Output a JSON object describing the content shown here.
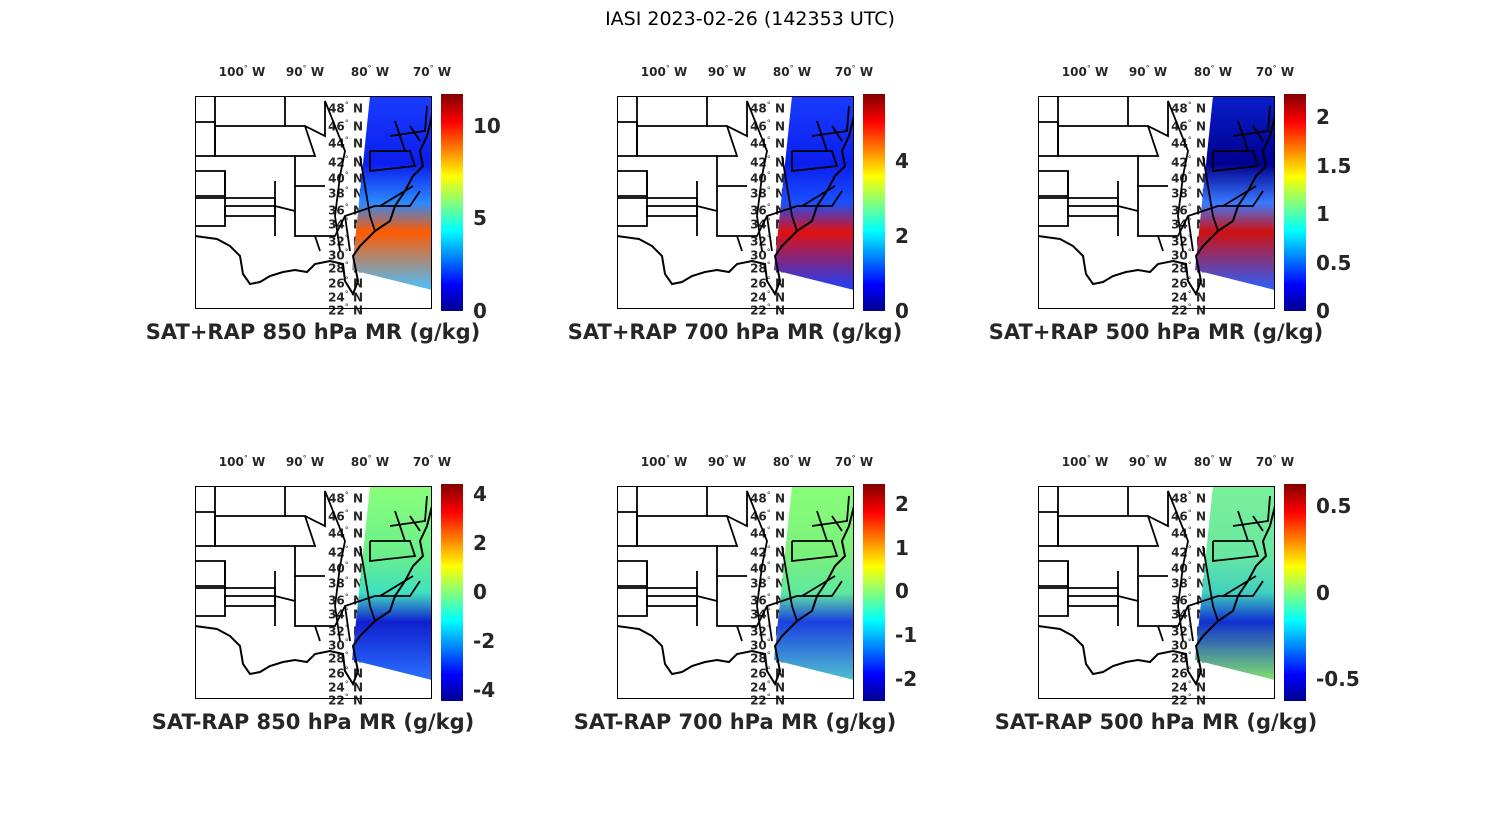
{
  "title": "IASI 2023-02-26 (142353 UTC)",
  "lon_labels": [
    "100",
    "90",
    "80",
    "70"
  ],
  "lon_suffix": "W",
  "lat_labels": [
    "48",
    "46",
    "44",
    "42",
    "40",
    "38",
    "36",
    "34",
    "32",
    "30",
    "28",
    "26",
    "24",
    "22"
  ],
  "lat_suffix": "N",
  "colormap": "jet",
  "panels": [
    {
      "title": "SAT+RAP 850 hPa MR (g/kg)",
      "range": [
        0,
        11.7
      ],
      "ticks": [
        "0",
        "5",
        "10"
      ],
      "tick_values": [
        0,
        5,
        10
      ],
      "swath": [
        "#1a3cff",
        "#0a1eee",
        "#2a8aff",
        "#ff5a00",
        "#4ac0ff"
      ]
    },
    {
      "title": "SAT+RAP 700 hPa MR (g/kg)",
      "range": [
        0,
        5.8
      ],
      "ticks": [
        "0",
        "2",
        "4"
      ],
      "tick_values": [
        0,
        2,
        4
      ],
      "swath": [
        "#1a3cff",
        "#0a1eee",
        "#1a50ff",
        "#e01010",
        "#1a40ff"
      ]
    },
    {
      "title": "SAT+RAP 500 hPa MR (g/kg)",
      "range": [
        0,
        2.24
      ],
      "ticks": [
        "0",
        "0.5",
        "1",
        "1.5",
        "2"
      ],
      "tick_values": [
        0,
        0.5,
        1,
        1.5,
        2
      ],
      "swath": [
        "#0a1ecc",
        "#00008f",
        "#3a7aff",
        "#d01010",
        "#2a60ff"
      ]
    },
    {
      "title": "SAT-RAP 850 hPa MR (g/kg)",
      "range": [
        -4.45,
        4.4
      ],
      "ticks": [
        "-4",
        "-2",
        "0",
        "2",
        "4"
      ],
      "tick_values": [
        -4,
        -2,
        0,
        2,
        4
      ],
      "swath": [
        "#8aff7a",
        "#6af08a",
        "#40e0c0",
        "#1020d0",
        "#2a70ff"
      ]
    },
    {
      "title": "SAT-RAP 700 hPa MR (g/kg)",
      "range": [
        -2.5,
        2.45
      ],
      "ticks": [
        "-2",
        "-1",
        "0",
        "1",
        "2"
      ],
      "tick_values": [
        -2,
        -1,
        0,
        1,
        2
      ],
      "swath": [
        "#8aff7a",
        "#7af07a",
        "#60e8a0",
        "#1a40e0",
        "#50c0d0"
      ]
    },
    {
      "title": "SAT-RAP 500 hPa MR (g/kg)",
      "range": [
        -0.63,
        0.63
      ],
      "ticks": [
        "-0.5",
        "0",
        "0.5"
      ],
      "tick_values": [
        -0.5,
        0,
        0.5
      ],
      "swath": [
        "#7af09a",
        "#6ae8a0",
        "#40d0c0",
        "#1030d0",
        "#80e070"
      ]
    }
  ]
}
